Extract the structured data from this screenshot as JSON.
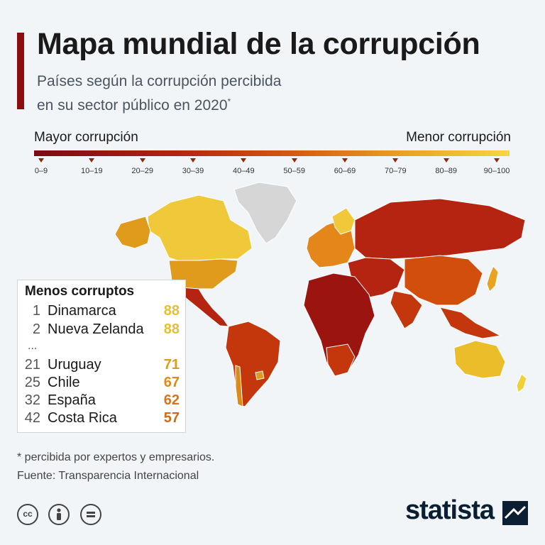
{
  "header": {
    "title": "Mapa mundial de la corrupción",
    "subtitle_line1": "Países según la corrupción percibida",
    "subtitle_line2": "en su sector público en 2020",
    "subtitle_mark": "*"
  },
  "scale": {
    "left_label": "Mayor corrupción",
    "right_label": "Menor corrupción",
    "ticks": [
      "0–9",
      "10–19",
      "20–29",
      "30–39",
      "40–49",
      "50–59",
      "60–69",
      "70–79",
      "80–89",
      "90–100"
    ],
    "colors": [
      "#7a0a12",
      "#9c1410",
      "#b42410",
      "#c4370c",
      "#d24e0c",
      "#dd6a12",
      "#e5861a",
      "#e9a322",
      "#ebbd2a",
      "#efd23a"
    ]
  },
  "legend": {
    "title": "Menos corruptos",
    "ellipsis": "...",
    "rows": [
      {
        "rank": "1",
        "country": "Dinamarca",
        "score": "88",
        "color": "#e6c12c"
      },
      {
        "rank": "2",
        "country": "Nueva Zelanda",
        "score": "88",
        "color": "#e6c12c"
      },
      {
        "rank": "21",
        "country": "Uruguay",
        "score": "71",
        "color": "#e09a1c"
      },
      {
        "rank": "25",
        "country": "Chile",
        "score": "67",
        "color": "#dd8a18"
      },
      {
        "rank": "32",
        "country": "España",
        "score": "62",
        "color": "#d8741a"
      },
      {
        "rank": "42",
        "country": "Costa Rica",
        "score": "57",
        "color": "#d06a16"
      }
    ]
  },
  "footer": {
    "note": "* percibida por expertos y empresarios.",
    "source": "Fuente: Transparencia Internacional",
    "brand": "statista"
  },
  "icons": {
    "cc": "cc-icon",
    "by": "person-icon",
    "nd": "equals-icon"
  }
}
